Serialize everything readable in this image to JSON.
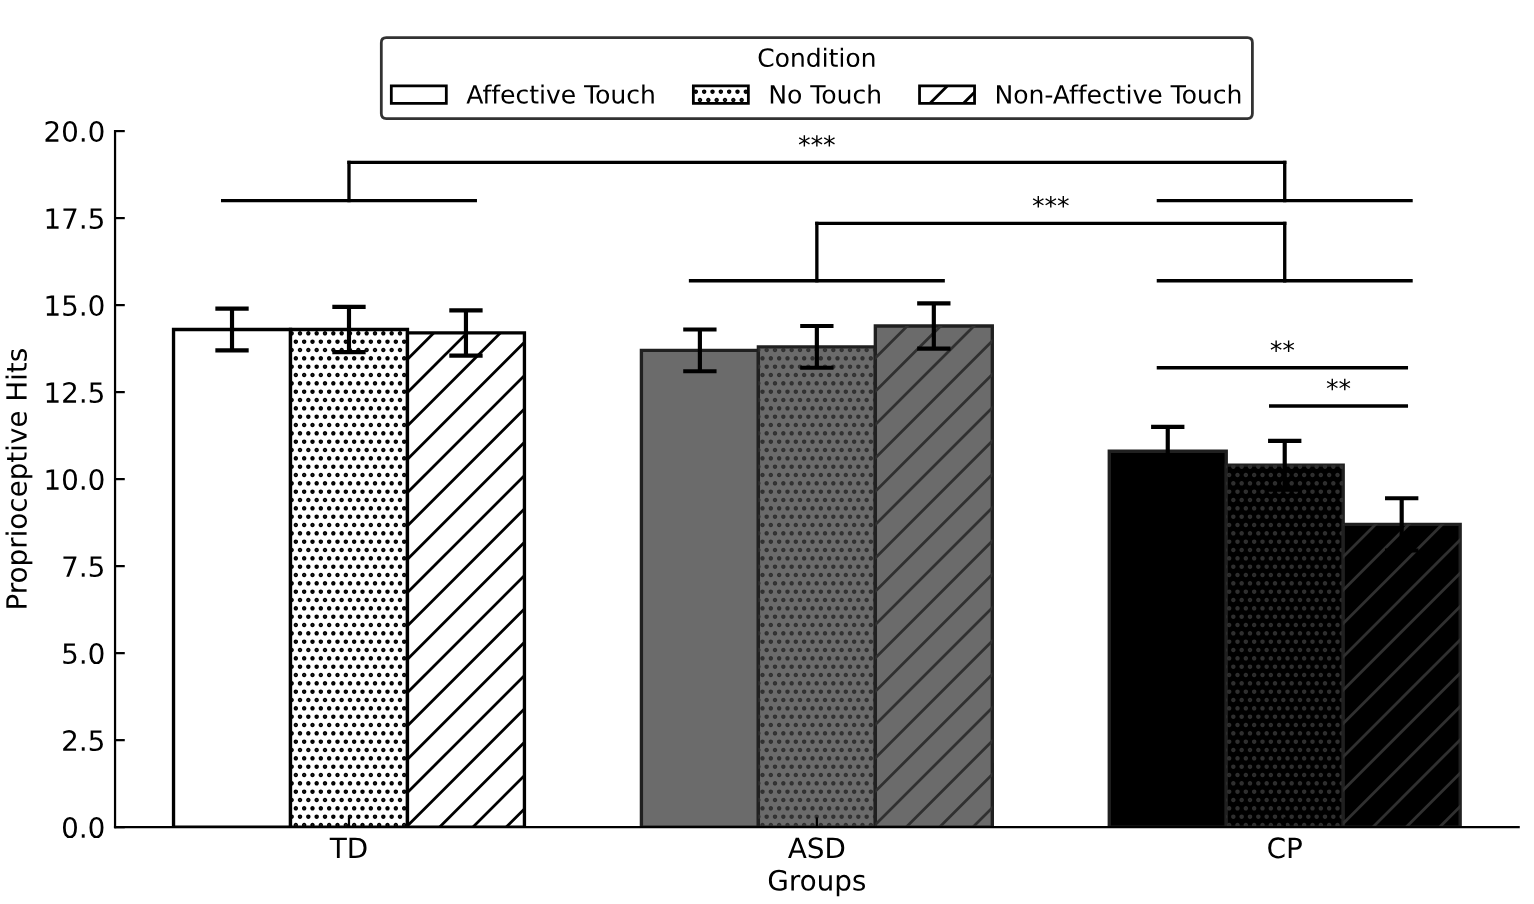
{
  "chart_data": {
    "type": "bar",
    "xlabel": "Groups",
    "ylabel": "Proprioceptive Hits",
    "legend_title": "Condition",
    "legend": "top",
    "categories": [
      "TD",
      "ASD",
      "CP"
    ],
    "series": [
      {
        "name": "Affective Touch",
        "colors": [
          "#ffffff",
          "#6b6b6b",
          "#000000"
        ],
        "values": [
          14.3,
          13.7,
          10.8
        ],
        "errors": [
          0.6,
          0.6,
          0.7
        ]
      },
      {
        "name": "No Touch",
        "colors": [
          "#ffffff",
          "#6b6b6b",
          "#000000"
        ],
        "values": [
          14.3,
          13.8,
          10.4
        ],
        "errors": [
          0.65,
          0.6,
          0.7
        ]
      },
      {
        "name": "Non-Affective Touch",
        "colors": [
          "#ffffff",
          "#6b6b6b",
          "#000000"
        ],
        "values": [
          14.2,
          14.4,
          8.7
        ],
        "errors": [
          0.65,
          0.65,
          0.75
        ]
      }
    ],
    "ylim": [
      0,
      20
    ],
    "yticks": [
      {
        "value": 0,
        "label": "0.0"
      },
      {
        "value": 2.5,
        "label": "2.5"
      },
      {
        "value": 5,
        "label": "5.0"
      },
      {
        "value": 7.5,
        "label": "7.5"
      },
      {
        "value": 10,
        "label": "10.0"
      },
      {
        "value": 12.5,
        "label": "12.5"
      },
      {
        "value": 15,
        "label": "15.0"
      },
      {
        "value": 17.5,
        "label": "17.5"
      },
      {
        "value": 20,
        "label": "20.0"
      }
    ],
    "grid": false,
    "annotations": [
      "***",
      "***",
      "**",
      "**"
    ]
  }
}
